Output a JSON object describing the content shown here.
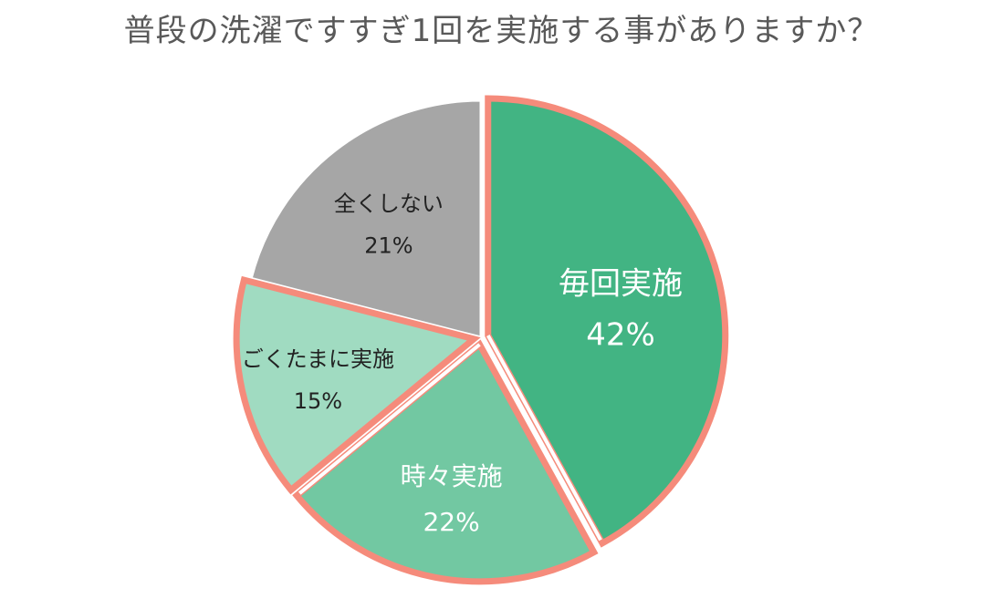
{
  "chart_data": {
    "type": "pie",
    "title": "普段の洗濯ですすぎ1回を実施する事がありますか？",
    "slices": [
      {
        "label": "毎回実施",
        "value": 42,
        "display": "42%",
        "color": "#42b483",
        "text_color": "#ffffff",
        "highlight": true
      },
      {
        "label": "時々実施",
        "value": 22,
        "display": "22%",
        "color": "#72c8a2",
        "text_color": "#ffffff",
        "highlight": true
      },
      {
        "label": "ごくたまに実施",
        "value": 15,
        "display": "15%",
        "color": "#a0dbc1",
        "text_color": "#222222",
        "highlight": true
      },
      {
        "label": "全くしない",
        "value": 21,
        "display": "21%",
        "color": "#a6a6a6",
        "text_color": "#222222",
        "highlight": false
      }
    ],
    "highlight_color": "#f58b7b",
    "legend": "none"
  }
}
